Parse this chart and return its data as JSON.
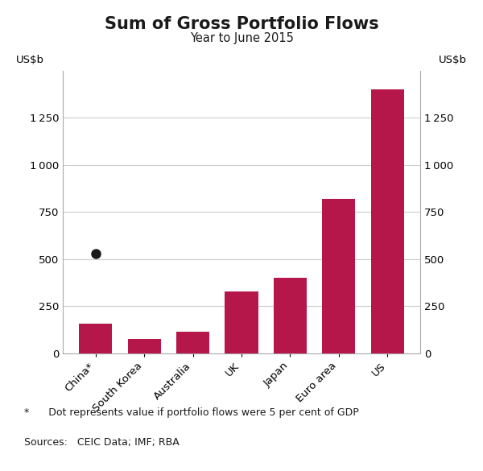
{
  "title": "Sum of Gross Portfolio Flows",
  "subtitle": "Year to June 2015",
  "ylabel_left": "US$b",
  "ylabel_right": "US$b",
  "categories": [
    "China*",
    "South Korea",
    "Australia",
    "UK",
    "Japan",
    "Euro area",
    "US"
  ],
  "values": [
    155,
    75,
    115,
    330,
    400,
    820,
    1400
  ],
  "dot_index": 0,
  "dot_value": 530,
  "bar_color": "#b5174b",
  "dot_color": "#1a1a1a",
  "ylim": [
    0,
    1500
  ],
  "yticks": [
    0,
    250,
    500,
    750,
    1000,
    1250
  ],
  "background_color": "#ffffff",
  "grid_color": "#cccccc",
  "footnote_star": "*      Dot represents value if portfolio flows were 5 per cent of GDP",
  "footnote_sources": "Sources:   CEIC Data; IMF; RBA",
  "title_fontsize": 15,
  "subtitle_fontsize": 10.5,
  "tick_fontsize": 9.5,
  "label_fontsize": 9.5,
  "footnote_fontsize": 9.0
}
